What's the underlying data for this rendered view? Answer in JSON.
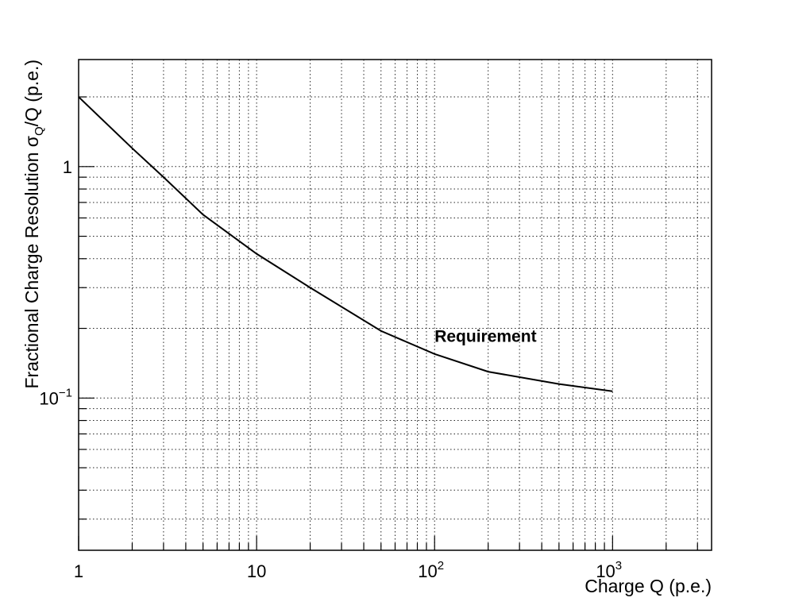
{
  "chart_data": {
    "type": "line",
    "title": "",
    "xlabel": "Charge Q (p.e.)",
    "ylabel": {
      "prefix": "Fractional Charge Resolution σ",
      "subscript": "Q",
      "suffix": "/Q (p.e.)"
    },
    "x_scale": "log",
    "y_scale": "log",
    "xlim": [
      1,
      3600
    ],
    "ylim": [
      0.022,
      2.9
    ],
    "grid": true,
    "x_ticks": [
      {
        "value": 1,
        "base": "1",
        "exp": ""
      },
      {
        "value": 10,
        "base": "10",
        "exp": ""
      },
      {
        "value": 100,
        "base": "10",
        "exp": "2"
      },
      {
        "value": 1000,
        "base": "10",
        "exp": "3"
      }
    ],
    "y_ticks": [
      {
        "value": 1,
        "base": "1",
        "exp": ""
      },
      {
        "value": 0.1,
        "base": "10",
        "exp": "−1"
      }
    ],
    "series": [
      {
        "x": [
          1,
          2,
          3,
          5,
          10,
          20,
          50,
          100,
          200,
          500,
          1000
        ],
        "y": [
          2.0,
          1.2,
          0.9,
          0.62,
          0.42,
          0.3,
          0.195,
          0.155,
          0.13,
          0.115,
          0.107
        ]
      }
    ],
    "annotations": [
      {
        "text": "Requirement",
        "x": 100,
        "y": 0.185
      }
    ]
  }
}
